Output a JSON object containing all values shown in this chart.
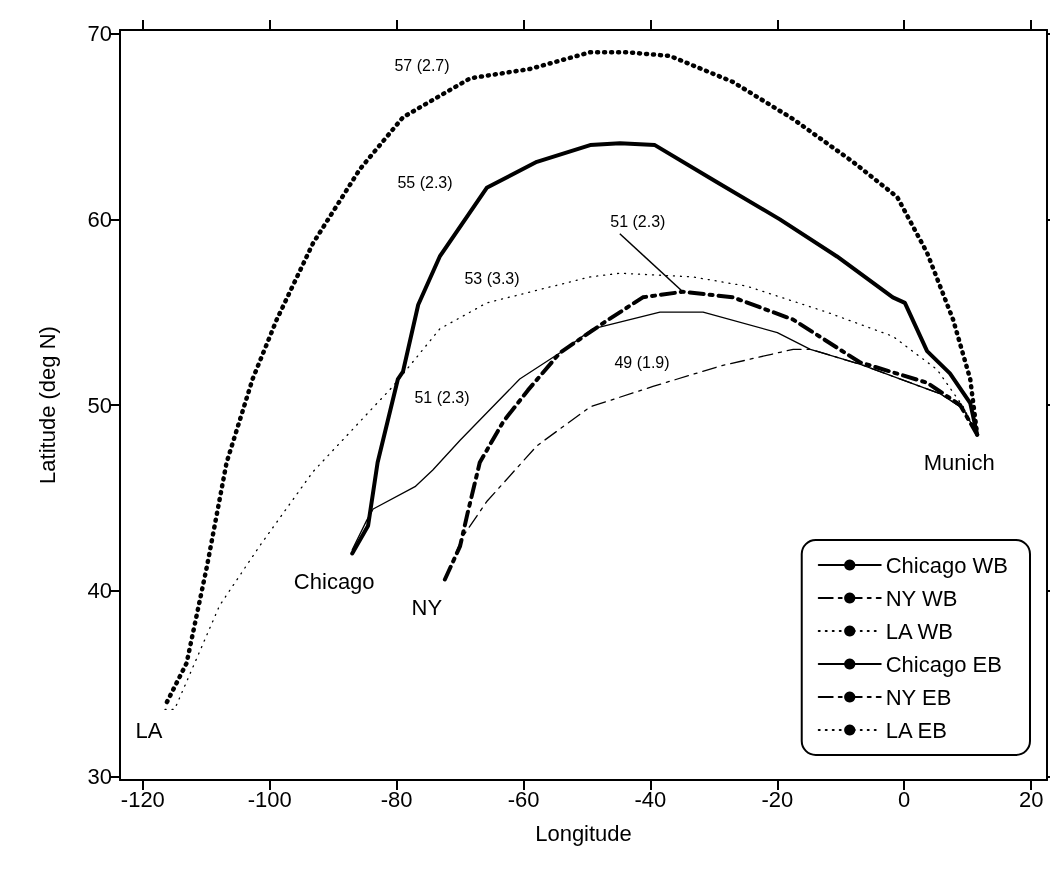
{
  "chart_data": {
    "type": "line",
    "xlabel": "Longitude",
    "ylabel": "Latitude (deg N)",
    "xlim": [
      -123.6,
      22.5
    ],
    "xticks": [
      -120,
      -100,
      -80,
      -60,
      -40,
      -20,
      0,
      20
    ],
    "ylim": [
      29.8,
      70.2
    ],
    "yticks": [
      30,
      40,
      50,
      60,
      70
    ],
    "grid": false,
    "legend": "bottom right",
    "marker": "none",
    "series": [
      {
        "name": "Chicago WB",
        "color": "#000000",
        "line_style": "solid",
        "x": [
          -87,
          -84.5,
          -83.0,
          -79.8,
          -79.0,
          -76.6,
          -73.2,
          -65.8,
          -57.9,
          -49.5,
          -44.8,
          -39.3,
          -29.5,
          -19.6,
          -10.6,
          -1.8,
          0.1,
          3.6,
          7.2,
          10.4,
          11.5
        ],
        "values": [
          42.0,
          43.5,
          46.9,
          51.4,
          51.8,
          55.4,
          58.0,
          61.7,
          63.1,
          64.0,
          64.1,
          64.0,
          62.0,
          60.0,
          58.0,
          55.8,
          55.5,
          52.9,
          51.7,
          50.1,
          48.4
        ]
      },
      {
        "name": "NY WB",
        "color": "#000000",
        "line_style": "dashed",
        "x": [
          -72.4,
          -70.0,
          -68.8,
          -66.9,
          -63.2,
          -59.3,
          -54.3,
          -47.5,
          -41.2,
          -34.9,
          -27.0,
          -17.5,
          -7.0,
          3.6,
          8.8,
          11.5
        ],
        "values": [
          40.6,
          42.4,
          44.2,
          46.9,
          49.1,
          50.8,
          52.8,
          54.4,
          55.8,
          56.1,
          55.8,
          54.6,
          52.3,
          51.2,
          50.0,
          48.4
        ]
      },
      {
        "name": "LA WB",
        "color": "#000000",
        "line_style": "dotted",
        "x": [
          -116.2,
          -113.1,
          -109.9,
          -106.8,
          -102.7,
          -98.9,
          -93.2,
          -85.8,
          -79.0,
          -68.4,
          -59.0,
          -49.5,
          -43.7,
          -36.9,
          -27.0,
          -17.5,
          -8.1,
          -1.1,
          3.6,
          7.7,
          10.4,
          11.5
        ],
        "values": [
          34.0,
          36.1,
          41.3,
          46.9,
          51.4,
          54.6,
          58.7,
          62.7,
          65.5,
          67.6,
          68.1,
          69.0,
          69.0,
          68.8,
          67.4,
          65.4,
          63.1,
          61.2,
          58.2,
          54.6,
          51.4,
          48.4
        ]
      },
      {
        "name": "Chicago EB",
        "color": "#000000",
        "line_style": "solid",
        "x": [
          -87,
          -84.7,
          -83.7,
          -77.1,
          -74.3,
          -70.0,
          -60.6,
          -54.3,
          -49.1,
          -38.5,
          -31.7,
          -20.0,
          -14.8,
          -7.0,
          5.7,
          9.3,
          11.5
        ],
        "values": [
          42.2,
          43.8,
          44.4,
          45.6,
          46.5,
          48.1,
          51.4,
          52.8,
          54.1,
          55.0,
          55.0,
          53.9,
          53.0,
          52.2,
          50.6,
          49.8,
          48.4
        ]
      },
      {
        "name": "NY EB",
        "color": "#000000",
        "line_style": "dashed",
        "x": [
          -72.4,
          -69.6,
          -65.8,
          -57.9,
          -49.5,
          -39.6,
          -29.0,
          -17.5,
          -14.8,
          -7.0,
          5.7,
          9.3,
          11.5
        ],
        "values": [
          40.6,
          42.9,
          44.8,
          47.8,
          49.9,
          51.0,
          52.1,
          53.0,
          53.0,
          52.2,
          50.6,
          49.8,
          48.4
        ]
      },
      {
        "name": "LA EB",
        "color": "#000000",
        "line_style": "dotted",
        "x": [
          -116.5,
          -115.0,
          -107.9,
          -101.6,
          -93.2,
          -80.6,
          -73.2,
          -65.8,
          -49.5,
          -44.8,
          -33.3,
          -24.8,
          -12.2,
          -1.8,
          5.2,
          9.3,
          11.5
        ],
        "values": [
          33.6,
          33.6,
          39.2,
          42.4,
          46.4,
          51.0,
          54.1,
          55.5,
          56.9,
          57.1,
          56.9,
          56.4,
          55.0,
          53.7,
          51.9,
          49.9,
          48.4
        ]
      }
    ],
    "annotations": [
      "57 (2.7)",
      "55 (2.3)",
      "53 (3.3)",
      "51 (2.3)",
      "49 (1.9)",
      {
        "text": "51 (2.3)",
        "x": -34.9,
        "y": 56.1
      },
      {
        "text": "Chicago",
        "x": -87,
        "y": 42.0
      },
      {
        "text": "NY",
        "x": -72.4,
        "y": 40.6
      },
      {
        "text": "LA",
        "x": -116.2,
        "y": 34.0
      },
      {
        "text": "Munich",
        "x": 11.5,
        "y": 48.4
      }
    ]
  }
}
